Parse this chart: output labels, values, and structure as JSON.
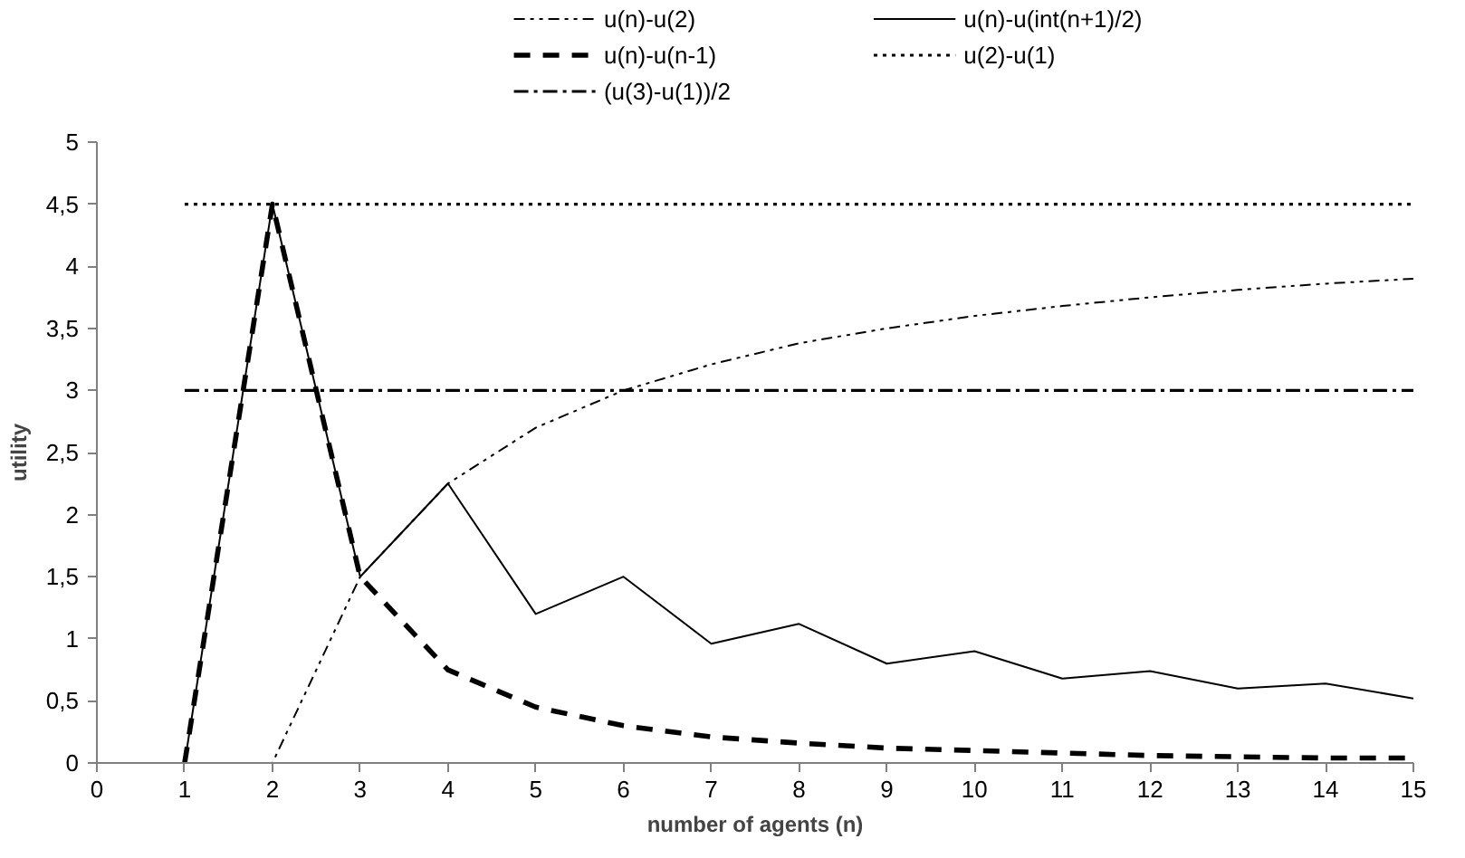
{
  "chart_data": {
    "type": "line",
    "xlabel": "number of agents (n)",
    "ylabel": "utility",
    "x": [
      1,
      2,
      3,
      4,
      5,
      6,
      7,
      8,
      9,
      10,
      11,
      12,
      13,
      14,
      15
    ],
    "series": [
      {
        "name": "u(n)-u(2)",
        "color": "#000000",
        "line_style": "dashdotdot",
        "values": [
          0,
          0,
          1.5,
          2.25,
          2.7,
          3.0,
          3.21,
          3.38,
          3.5,
          3.6,
          3.68,
          3.75,
          3.81,
          3.86,
          3.9
        ]
      },
      {
        "name": "u(n)-u(int(n+1)/2)",
        "color": "#000000",
        "line_style": "solid",
        "values": [
          0,
          4.5,
          1.5,
          2.25,
          1.2,
          1.5,
          0.96,
          1.12,
          0.8,
          0.9,
          0.68,
          0.74,
          0.6,
          0.64,
          0.52
        ]
      },
      {
        "name": "u(n)-u(n-1)",
        "color": "#000000",
        "line_style": "dashed",
        "values": [
          0,
          4.5,
          1.5,
          0.75,
          0.45,
          0.3,
          0.21,
          0.16,
          0.12,
          0.1,
          0.08,
          0.06,
          0.05,
          0.04,
          0.04
        ]
      },
      {
        "name": "u(2)-u(1)",
        "color": "#000000",
        "line_style": "dotted",
        "values": [
          4.5,
          4.5,
          4.5,
          4.5,
          4.5,
          4.5,
          4.5,
          4.5,
          4.5,
          4.5,
          4.5,
          4.5,
          4.5,
          4.5,
          4.5
        ]
      },
      {
        "name": "(u(3)-u(1))/2",
        "color": "#000000",
        "line_style": "dashdot",
        "values": [
          3,
          3,
          3,
          3,
          3,
          3,
          3,
          3,
          3,
          3,
          3,
          3,
          3,
          3,
          3
        ]
      }
    ],
    "xlim": [
      0,
      15
    ],
    "xticks": [
      0,
      1,
      2,
      3,
      4,
      5,
      6,
      7,
      8,
      9,
      10,
      11,
      12,
      13,
      14,
      15
    ],
    "ylim": [
      0,
      5
    ],
    "yticks": [
      0,
      {
        "value": 0.5,
        "label": "0,5"
      },
      1,
      {
        "value": 1.5,
        "label": "1,5"
      },
      2,
      {
        "value": 2.5,
        "label": "2,5"
      },
      3,
      {
        "value": 3.5,
        "label": "3,5"
      },
      4,
      {
        "value": 4.5,
        "label": "4,5"
      },
      5
    ],
    "grid": false,
    "legend": "top",
    "marker": "none"
  }
}
